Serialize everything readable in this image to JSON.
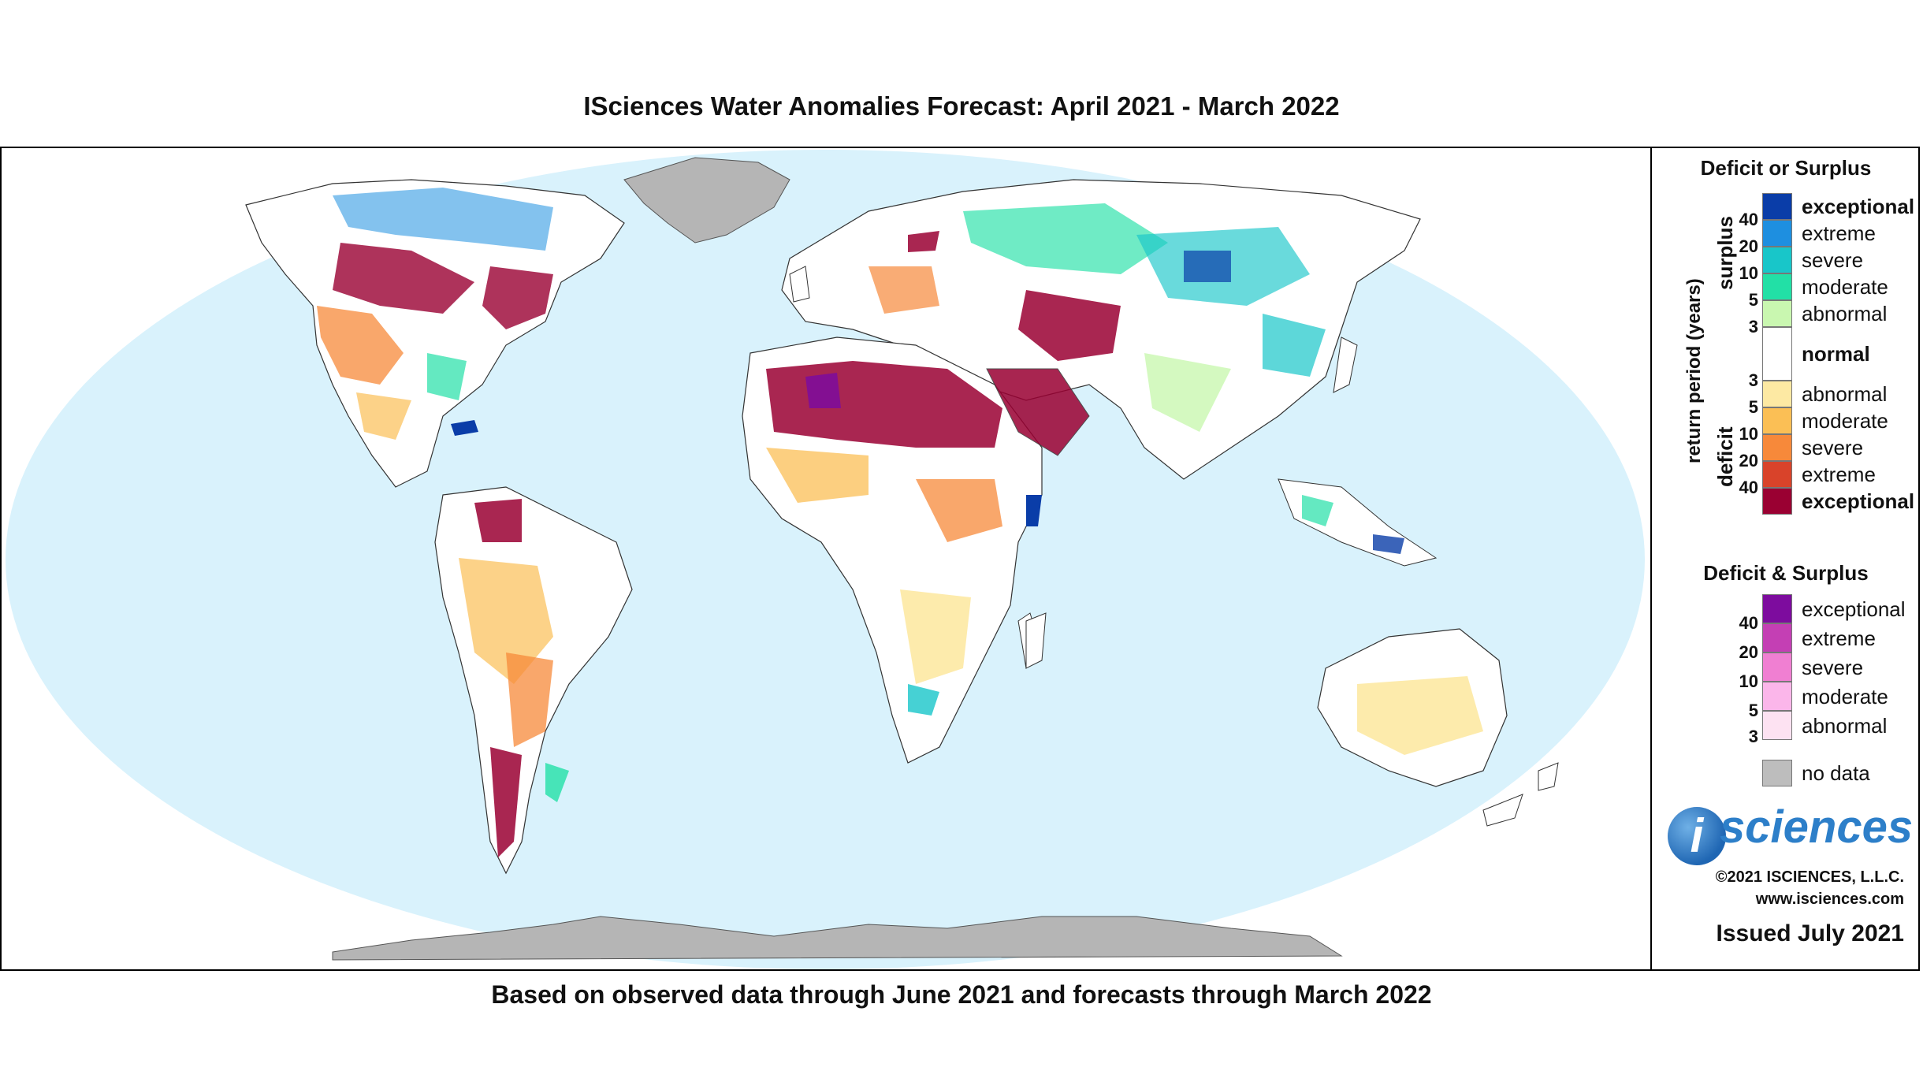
{
  "title": "ISciences Water Anomalies Forecast: April 2021 - March 2022",
  "subtitle": "Based on observed data through June 2021 and forecasts through March 2022",
  "legend": {
    "deficit_or_surplus": {
      "heading": "Deficit or Surplus",
      "axis_label": "return period (years)",
      "surplus_label": "surplus",
      "deficit_label": "deficit",
      "surplus_classes": [
        {
          "label": "exceptional",
          "color": "#0a3da8"
        },
        {
          "label": "extreme",
          "color": "#1e8fe0"
        },
        {
          "label": "severe",
          "color": "#18c6c9"
        },
        {
          "label": "moderate",
          "color": "#22e0a6"
        },
        {
          "label": "abnormal",
          "color": "#c9f7b0"
        }
      ],
      "surplus_ticks": [
        "40",
        "20",
        "10",
        "5",
        "3"
      ],
      "normal": {
        "label": "normal",
        "color": "#ffffff"
      },
      "deficit_classes": [
        {
          "label": "abnormal",
          "color": "#fde9a3"
        },
        {
          "label": "moderate",
          "color": "#fbbf55"
        },
        {
          "label": "severe",
          "color": "#f7893a"
        },
        {
          "label": "extreme",
          "color": "#d9432a"
        },
        {
          "label": "exceptional",
          "color": "#9a0032"
        }
      ],
      "deficit_ticks": [
        "3",
        "5",
        "10",
        "20",
        "40"
      ]
    },
    "deficit_and_surplus": {
      "heading": "Deficit & Surplus",
      "classes": [
        {
          "label": "exceptional",
          "color": "#7d0c9e"
        },
        {
          "label": "extreme",
          "color": "#c43fb4"
        },
        {
          "label": "severe",
          "color": "#f07fd2"
        },
        {
          "label": "moderate",
          "color": "#fbb6ea"
        },
        {
          "label": "abnormal",
          "color": "#fde2f2"
        }
      ],
      "ticks": [
        "40",
        "20",
        "10",
        "5",
        "3"
      ]
    },
    "no_data": {
      "label": "no data",
      "color": "#bdbdbd"
    }
  },
  "branding": {
    "logo_letter": "i",
    "logo_text": "sciences",
    "copyright": "©2021 ISCIENCES, L.L.C.",
    "website": "www.isciences.com",
    "issued": "Issued July 2021"
  },
  "map_colors": {
    "ocean": "#d9f2fc",
    "land": "#ffffff",
    "no_data": "#b5b5b5"
  }
}
